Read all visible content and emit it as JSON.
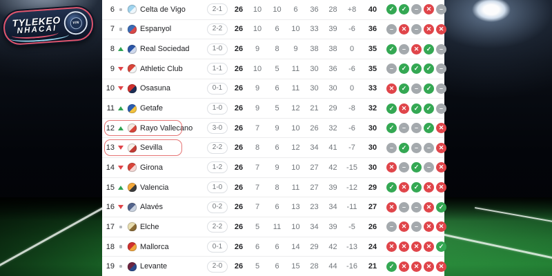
{
  "logo": {
    "line1": "TYLEKEO",
    "line2": "NHACAI",
    "ball_text": "VIN"
  },
  "colors": {
    "win": "#34a853",
    "loss": "#e0454a",
    "draw": "#a4a9ad",
    "up": "#2fa353",
    "down": "#e0454a",
    "same": "#b4b8bc",
    "highlight": "#e57373",
    "text_dark": "#202124",
    "text_grey": "#70757a",
    "pill_border": "#dcdfe3",
    "separator": "#ededee",
    "logo_border": "#e0556e",
    "swoosh_blue": "#9adcf5"
  },
  "icons": {
    "win": "✓",
    "loss": "✕",
    "draw": "–",
    "up": "triangle-up",
    "down": "triangle-down",
    "same": "dot"
  },
  "table": {
    "rows": [
      {
        "pos": "6",
        "movement": "same",
        "team": "Celta de Vigo",
        "crest": [
          "#9fd3ee",
          "#eef7fc"
        ],
        "result": "2-1",
        "played": "26",
        "w": "10",
        "d": "10",
        "l": "6",
        "gf": "36",
        "ga": "28",
        "gd": "+8",
        "pts": "40",
        "form": [
          "win",
          "win",
          "draw",
          "loss",
          "draw"
        ],
        "highlighted": false
      },
      {
        "pos": "7",
        "movement": "same",
        "team": "Espanyol",
        "crest": [
          "#3a6bb5",
          "#d94848"
        ],
        "result": "2-2",
        "played": "26",
        "w": "10",
        "d": "6",
        "l": "10",
        "gf": "33",
        "ga": "39",
        "gd": "-6",
        "pts": "36",
        "form": [
          "draw",
          "loss",
          "draw",
          "loss",
          "loss"
        ],
        "highlighted": false
      },
      {
        "pos": "8",
        "movement": "up",
        "team": "Real Sociedad",
        "crest": [
          "#2b55a5",
          "#cfd9ec"
        ],
        "result": "1-0",
        "played": "26",
        "w": "9",
        "d": "8",
        "l": "9",
        "gf": "38",
        "ga": "38",
        "gd": "0",
        "pts": "35",
        "form": [
          "win",
          "draw",
          "loss",
          "win",
          "draw"
        ],
        "highlighted": false
      },
      {
        "pos": "9",
        "movement": "down",
        "team": "Athletic Club",
        "crest": [
          "#d8453a",
          "#f4f4f4"
        ],
        "result": "1-1",
        "played": "26",
        "w": "10",
        "d": "5",
        "l": "11",
        "gf": "30",
        "ga": "36",
        "gd": "-6",
        "pts": "35",
        "form": [
          "draw",
          "win",
          "win",
          "win",
          "draw"
        ],
        "highlighted": false
      },
      {
        "pos": "10",
        "movement": "down",
        "team": "Osasuna",
        "crest": [
          "#d0312e",
          "#1c2e55"
        ],
        "result": "0-1",
        "played": "26",
        "w": "9",
        "d": "6",
        "l": "11",
        "gf": "30",
        "ga": "30",
        "gd": "0",
        "pts": "33",
        "form": [
          "loss",
          "win",
          "draw",
          "win",
          "draw"
        ],
        "highlighted": false
      },
      {
        "pos": "11",
        "movement": "up",
        "team": "Getafe",
        "crest": [
          "#2a5cb0",
          "#f3c23e"
        ],
        "result": "1-0",
        "played": "26",
        "w": "9",
        "d": "5",
        "l": "12",
        "gf": "21",
        "ga": "29",
        "gd": "-8",
        "pts": "32",
        "form": [
          "win",
          "loss",
          "win",
          "win",
          "draw"
        ],
        "highlighted": false
      },
      {
        "pos": "12",
        "movement": "up",
        "team": "Rayo Vallecano",
        "crest": [
          "#f3e7df",
          "#d8453a"
        ],
        "result": "3-0",
        "played": "26",
        "w": "7",
        "d": "9",
        "l": "10",
        "gf": "26",
        "ga": "32",
        "gd": "-6",
        "pts": "30",
        "form": [
          "win",
          "draw",
          "draw",
          "win",
          "loss"
        ],
        "highlighted": true
      },
      {
        "pos": "13",
        "movement": "down",
        "team": "Sevilla",
        "crest": [
          "#f6efe8",
          "#c43c35"
        ],
        "result": "2-2",
        "played": "26",
        "w": "8",
        "d": "6",
        "l": "12",
        "gf": "34",
        "ga": "41",
        "gd": "-7",
        "pts": "30",
        "form": [
          "draw",
          "win",
          "draw",
          "draw",
          "loss"
        ],
        "highlighted": true
      },
      {
        "pos": "14",
        "movement": "down",
        "team": "Girona",
        "crest": [
          "#d8453a",
          "#f5d7d4"
        ],
        "result": "1-2",
        "played": "26",
        "w": "7",
        "d": "9",
        "l": "10",
        "gf": "27",
        "ga": "42",
        "gd": "-15",
        "pts": "30",
        "form": [
          "loss",
          "draw",
          "win",
          "draw",
          "loss"
        ],
        "highlighted": false
      },
      {
        "pos": "15",
        "movement": "up",
        "team": "Valencia",
        "crest": [
          "#f5a93c",
          "#3b3b3b"
        ],
        "result": "1-0",
        "played": "26",
        "w": "7",
        "d": "8",
        "l": "11",
        "gf": "27",
        "ga": "39",
        "gd": "-12",
        "pts": "29",
        "form": [
          "win",
          "loss",
          "win",
          "loss",
          "loss"
        ],
        "highlighted": false
      },
      {
        "pos": "16",
        "movement": "down",
        "team": "Alavés",
        "crest": [
          "#53648c",
          "#c9d2e0"
        ],
        "result": "0-2",
        "played": "26",
        "w": "7",
        "d": "6",
        "l": "13",
        "gf": "23",
        "ga": "34",
        "gd": "-11",
        "pts": "27",
        "form": [
          "loss",
          "draw",
          "draw",
          "loss",
          "win"
        ],
        "highlighted": false
      },
      {
        "pos": "17",
        "movement": "same",
        "team": "Elche",
        "crest": [
          "#e8ddb0",
          "#8a6a34"
        ],
        "result": "2-2",
        "played": "26",
        "w": "5",
        "d": "11",
        "l": "10",
        "gf": "34",
        "ga": "39",
        "gd": "-5",
        "pts": "26",
        "form": [
          "draw",
          "loss",
          "draw",
          "loss",
          "loss"
        ],
        "highlighted": false
      },
      {
        "pos": "18",
        "movement": "same",
        "team": "Mallorca",
        "crest": [
          "#d0312e",
          "#f0a63c"
        ],
        "result": "0-1",
        "played": "26",
        "w": "6",
        "d": "6",
        "l": "14",
        "gf": "29",
        "ga": "42",
        "gd": "-13",
        "pts": "24",
        "form": [
          "loss",
          "loss",
          "loss",
          "loss",
          "win"
        ],
        "highlighted": false
      },
      {
        "pos": "19",
        "movement": "same",
        "team": "Levante",
        "crest": [
          "#6e2540",
          "#2a4a8c"
        ],
        "result": "2-0",
        "played": "26",
        "w": "5",
        "d": "6",
        "l": "15",
        "gf": "28",
        "ga": "44",
        "gd": "-16",
        "pts": "21",
        "form": [
          "win",
          "loss",
          "loss",
          "loss",
          "loss"
        ],
        "highlighted": false
      }
    ]
  }
}
